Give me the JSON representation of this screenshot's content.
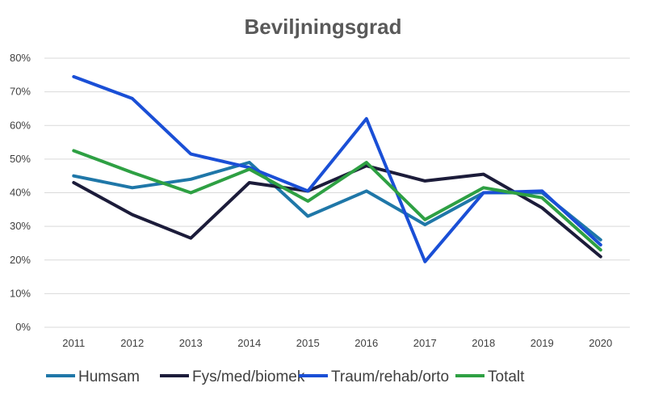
{
  "chart_data": {
    "type": "line",
    "title": "Beviljningsgrad",
    "xlabel": "",
    "ylabel": "",
    "categories": [
      "2011",
      "2012",
      "2013",
      "2014",
      "2015",
      "2016",
      "2017",
      "2018",
      "2019",
      "2020"
    ],
    "ylim": [
      0,
      80
    ],
    "yticks": [
      "0%",
      "10%",
      "20%",
      "30%",
      "40%",
      "50%",
      "60%",
      "70%",
      "80%"
    ],
    "grid": true,
    "legend_position": "bottom",
    "series": [
      {
        "name": "Humsam",
        "color": "#1f77a8",
        "values": [
          45,
          41.5,
          44,
          49,
          33,
          40.5,
          30.5,
          40,
          40,
          26
        ]
      },
      {
        "name": "Fys/med/biomek",
        "color": "#1c1c3a",
        "values": [
          43,
          33.5,
          26.5,
          43,
          40.5,
          48,
          43.5,
          45.5,
          35.5,
          21
        ]
      },
      {
        "name": "Traum/rehab/orto",
        "color": "#1a4fd6",
        "values": [
          74.5,
          68,
          51.5,
          47.5,
          40.5,
          62,
          19.5,
          40,
          40.5,
          24.5
        ]
      },
      {
        "name": "Totalt",
        "color": "#2ea043",
        "values": [
          52.5,
          46,
          40,
          47,
          37.5,
          49,
          32,
          41.5,
          38.5,
          23
        ]
      }
    ]
  }
}
